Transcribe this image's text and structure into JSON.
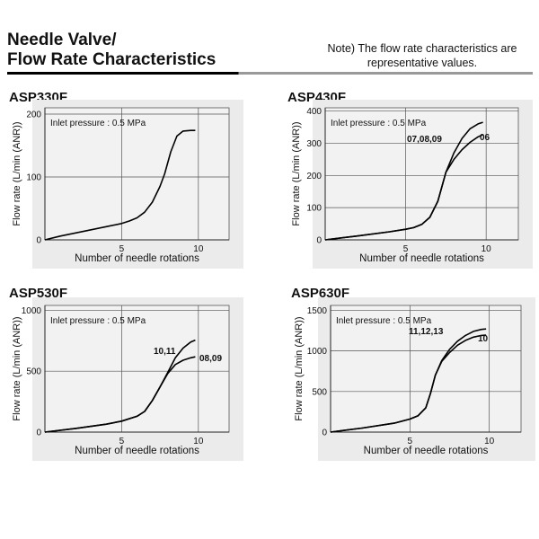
{
  "header": {
    "title_line1": "Needle Valve/",
    "title_line2": "Flow Rate Characteristics",
    "note_line1": "Note) The flow rate characteristics are",
    "note_line2": "representative values."
  },
  "chart_data": [
    {
      "type": "line",
      "title": "ASP330F",
      "annotation": "Inlet pressure : 0.5 MPa",
      "xlabel": "Number of needle rotations",
      "ylabel": "Flow rate (L/min (ANR))",
      "xlim": [
        0,
        12
      ],
      "ylim": [
        0,
        210
      ],
      "xticks": [
        5,
        10
      ],
      "yticks": [
        0,
        100,
        200
      ],
      "grid": true,
      "series": [
        {
          "name": "",
          "x": [
            0,
            1,
            2,
            3,
            4,
            5,
            5.5,
            6,
            6.5,
            7,
            7.5,
            7.8,
            8.2,
            8.6,
            9,
            9.5,
            9.8
          ],
          "y": [
            0,
            6,
            11,
            16,
            21,
            26,
            30,
            35,
            44,
            60,
            85,
            105,
            140,
            165,
            173,
            174,
            174
          ]
        }
      ]
    },
    {
      "type": "line",
      "title": "ASP430F",
      "annotation": "Inlet pressure : 0.5 MPa",
      "xlabel": "Number of needle rotations",
      "ylabel": "Flow rate (L/min (ANR))",
      "xlim": [
        0,
        12
      ],
      "ylim": [
        0,
        410
      ],
      "xticks": [
        5,
        10
      ],
      "yticks": [
        0,
        100,
        200,
        300,
        400
      ],
      "grid": true,
      "series": [
        {
          "name": "07,08,09",
          "x": [
            0,
            2,
            4,
            5,
            5.5,
            6,
            6.5,
            7,
            7.5,
            8,
            8.5,
            9,
            9.5,
            9.8
          ],
          "y": [
            0,
            12,
            25,
            33,
            38,
            48,
            70,
            120,
            210,
            270,
            315,
            345,
            360,
            365
          ]
        },
        {
          "name": "06",
          "x": [
            0,
            2,
            4,
            5,
            5.5,
            6,
            6.5,
            7,
            7.5,
            8,
            8.5,
            9,
            9.5,
            9.8
          ],
          "y": [
            0,
            12,
            25,
            33,
            38,
            48,
            70,
            120,
            210,
            250,
            280,
            303,
            320,
            327
          ]
        }
      ]
    },
    {
      "type": "line",
      "title": "ASP530F",
      "annotation": "Inlet pressure : 0.5 MPa",
      "xlabel": "Number of needle rotations",
      "ylabel": "Flow rate (L/min (ANR))",
      "xlim": [
        0,
        12
      ],
      "ylim": [
        0,
        1040
      ],
      "xticks": [
        5,
        10
      ],
      "yticks": [
        0,
        500,
        1000
      ],
      "grid": true,
      "series": [
        {
          "name": "10,11",
          "x": [
            0,
            2,
            4,
            5,
            6,
            6.5,
            7,
            7.5,
            8,
            8.5,
            9,
            9.5,
            9.8
          ],
          "y": [
            0,
            30,
            65,
            90,
            130,
            170,
            260,
            370,
            490,
            610,
            690,
            740,
            755
          ]
        },
        {
          "name": "08,09",
          "x": [
            0,
            2,
            4,
            5,
            6,
            6.5,
            7,
            7.5,
            8,
            8.5,
            9,
            9.5,
            9.8
          ],
          "y": [
            0,
            30,
            65,
            90,
            130,
            170,
            260,
            370,
            480,
            555,
            590,
            610,
            618
          ]
        }
      ]
    },
    {
      "type": "line",
      "title": "ASP630F",
      "annotation": "Inlet pressure : 0.5 MPa",
      "xlabel": "Number of needle rotations",
      "ylabel": "Flow rate (L/min (ANR))",
      "xlim": [
        0,
        12
      ],
      "ylim": [
        0,
        1560
      ],
      "xticks": [
        5,
        10
      ],
      "yticks": [
        0,
        500,
        1000,
        1500
      ],
      "grid": true,
      "series": [
        {
          "name": "11,12,13",
          "x": [
            0,
            2,
            4,
            5,
            5.5,
            6,
            6.3,
            6.6,
            7,
            7.5,
            8,
            8.5,
            9,
            9.5,
            9.8
          ],
          "y": [
            0,
            50,
            110,
            160,
            200,
            300,
            480,
            700,
            880,
            1020,
            1120,
            1190,
            1240,
            1265,
            1270
          ]
        },
        {
          "name": "10",
          "x": [
            0,
            2,
            4,
            5,
            5.5,
            6,
            6.3,
            6.6,
            7,
            7.5,
            8,
            8.5,
            9,
            9.5,
            9.8
          ],
          "y": [
            0,
            50,
            110,
            160,
            200,
            300,
            480,
            700,
            870,
            980,
            1070,
            1130,
            1170,
            1190,
            1195
          ]
        }
      ]
    }
  ]
}
